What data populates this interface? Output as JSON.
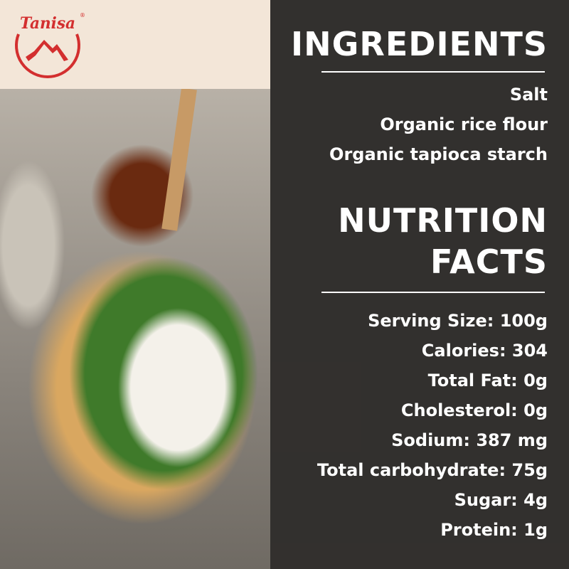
{
  "brand": {
    "logo_text": "Tanisa",
    "registered": "®",
    "color": "#d32f2f"
  },
  "ingredients": {
    "title": "INGREDIENTS",
    "items": [
      "Salt",
      "Organic rice flour",
      "Organic tapioca starch"
    ]
  },
  "nutrition": {
    "title_line1": "NUTRITION",
    "title_line2": "FACTS",
    "items": [
      "Serving Size: 100g",
      "Calories: 304",
      "Total Fat: 0g",
      "Cholesterol: 0g",
      "Sodium: 387 mg",
      "Total carbohydrate: 75g",
      "Sugar: 4g",
      "Protein: 1g"
    ]
  }
}
